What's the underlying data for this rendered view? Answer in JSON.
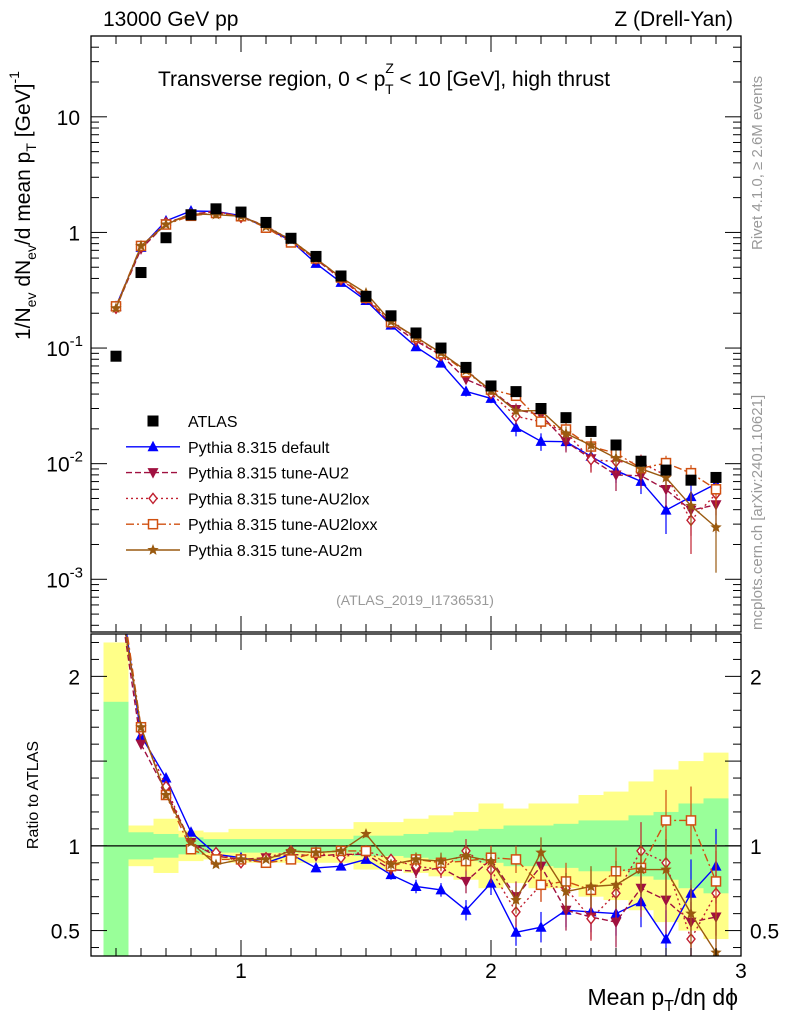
{
  "header": {
    "left": "13000 GeV pp",
    "right": "Z (Drell-Yan)"
  },
  "side": {
    "rivet": "Rivet 4.1.0, ≥ 2.6M events",
    "mcplots": "mcplots.cern.ch [arXiv:2401.10621]"
  },
  "chart_data": {
    "type": "line",
    "title_parts": {
      "pre": "Transverse region, 0 < p",
      "sup": "Z",
      "sub": "T",
      "post": " < 10 [GeV], high thrust"
    },
    "analysis_id": "(ATLAS_2019_I1736531)",
    "xlabel_parts": {
      "pre": "Mean p",
      "sub": "T",
      "post": "/dη dϕ"
    },
    "ylabel_text": "1/N_ev dN_ev/d mean p_T [GeV]^-1",
    "ratio_ylabel": "Ratio to ATLAS",
    "xlim": [
      0.4,
      3.0
    ],
    "xticks": [
      "1",
      "2",
      "3"
    ],
    "main_ylim_log": [
      0.00035,
      50
    ],
    "main_yticks": [
      {
        "base": "10",
        "exp": "-3",
        "value": 0.001
      },
      {
        "base": "10",
        "exp": "-2",
        "value": 0.01
      },
      {
        "base": "10",
        "exp": "-1",
        "value": 0.1
      },
      {
        "base": "1",
        "exp": "",
        "value": 1
      },
      {
        "base": "10",
        "exp": "",
        "value": 10
      }
    ],
    "ratio_ylim": [
      0.35,
      2.25
    ],
    "ratio_yticks": [
      "0.5",
      "1",
      "2"
    ],
    "x": [
      0.5,
      0.6,
      0.7,
      0.8,
      0.9,
      1.0,
      1.1,
      1.2,
      1.3,
      1.4,
      1.5,
      1.6,
      1.7,
      1.8,
      1.9,
      2.0,
      2.1,
      2.2,
      2.3,
      2.4,
      2.5,
      2.6,
      2.7,
      2.8,
      2.9
    ],
    "bin_edges": [
      0.45,
      0.55,
      0.65,
      0.75,
      0.85,
      0.95,
      1.05,
      1.15,
      1.25,
      1.35,
      1.45,
      1.55,
      1.65,
      1.75,
      1.85,
      1.95,
      2.05,
      2.15,
      2.25,
      2.35,
      2.45,
      2.55,
      2.65,
      2.75,
      2.85,
      2.95
    ],
    "data": {
      "name": "ATLAS",
      "color": "#000000",
      "values": [
        0.085,
        0.45,
        0.9,
        1.42,
        1.6,
        1.5,
        1.22,
        0.89,
        0.62,
        0.42,
        0.28,
        0.19,
        0.135,
        0.1,
        0.068,
        0.047,
        0.042,
        0.03,
        0.025,
        0.019,
        0.0145,
        0.0105,
        0.0088,
        0.0072,
        0.0076
      ],
      "band_inner": [
        0.85,
        0.08,
        0.07,
        0.05,
        0.04,
        0.04,
        0.04,
        0.04,
        0.04,
        0.04,
        0.06,
        0.06,
        0.07,
        0.08,
        0.09,
        0.1,
        0.12,
        0.12,
        0.13,
        0.15,
        0.15,
        0.18,
        0.2,
        0.25,
        0.28
      ],
      "band_outer": [
        1.2,
        0.12,
        0.16,
        0.09,
        0.08,
        0.1,
        0.1,
        0.1,
        0.1,
        0.1,
        0.14,
        0.14,
        0.16,
        0.18,
        0.2,
        0.25,
        0.22,
        0.25,
        0.25,
        0.3,
        0.32,
        0.38,
        0.45,
        0.5,
        0.55
      ]
    },
    "series": [
      {
        "name": "Pythia 8.315 default",
        "color": "#0000ff",
        "marker": "triangle-up",
        "dash": "",
        "ratio": [
          2.7,
          1.65,
          1.4,
          1.08,
          0.95,
          0.93,
          0.9,
          0.95,
          0.87,
          0.88,
          0.92,
          0.83,
          0.76,
          0.74,
          0.62,
          0.78,
          0.49,
          0.52,
          0.62,
          0.61,
          0.6,
          0.67,
          0.45,
          0.72,
          0.88
        ],
        "ratio_err": [
          0,
          0.02,
          0.02,
          0.01,
          0.01,
          0.01,
          0.01,
          0.01,
          0.02,
          0.02,
          0.02,
          0.03,
          0.04,
          0.04,
          0.06,
          0.07,
          0.08,
          0.09,
          0.1,
          0.12,
          0.13,
          0.15,
          0.17,
          0.2,
          0.22
        ]
      },
      {
        "name": "Pythia 8.315 tune-AU2",
        "color": "#a01040",
        "marker": "triangle-down",
        "dash": "6 3",
        "ratio": [
          2.6,
          1.6,
          1.32,
          1.02,
          0.94,
          0.92,
          0.93,
          0.95,
          0.94,
          0.95,
          0.95,
          0.86,
          0.85,
          0.87,
          0.79,
          0.92,
          0.7,
          0.88,
          0.62,
          0.58,
          0.55,
          0.75,
          0.68,
          0.55,
          0.58
        ],
        "ratio_err": [
          0,
          0.02,
          0.02,
          0.01,
          0.01,
          0.01,
          0.01,
          0.01,
          0.02,
          0.02,
          0.02,
          0.03,
          0.04,
          0.05,
          0.07,
          0.08,
          0.09,
          0.1,
          0.12,
          0.13,
          0.15,
          0.17,
          0.2,
          0.22,
          0.25
        ]
      },
      {
        "name": "Pythia 8.315 tune-AU2lox",
        "color": "#c02030",
        "marker": "diamond",
        "dash": "2 3",
        "ratio": [
          2.6,
          1.68,
          1.35,
          1.0,
          0.96,
          0.9,
          0.93,
          0.97,
          0.96,
          0.93,
          0.97,
          0.92,
          0.88,
          0.86,
          0.97,
          0.86,
          0.61,
          0.77,
          0.75,
          0.57,
          0.72,
          0.97,
          0.9,
          0.45,
          0.72
        ],
        "ratio_err": [
          0,
          0.02,
          0.02,
          0.01,
          0.01,
          0.01,
          0.01,
          0.01,
          0.02,
          0.02,
          0.02,
          0.03,
          0.04,
          0.05,
          0.07,
          0.08,
          0.09,
          0.1,
          0.12,
          0.13,
          0.15,
          0.17,
          0.2,
          0.22,
          0.25
        ]
      },
      {
        "name": "Pythia 8.315 tune-AU2loxx",
        "color": "#d05010",
        "marker": "square-open",
        "dash": "8 3 2 3",
        "ratio": [
          2.7,
          1.7,
          1.3,
          0.98,
          0.92,
          0.92,
          0.9,
          0.92,
          0.96,
          0.97,
          0.97,
          0.88,
          0.92,
          0.9,
          0.91,
          0.93,
          0.92,
          0.77,
          0.79,
          0.74,
          0.85,
          0.87,
          1.15,
          1.15,
          0.79
        ],
        "ratio_err": [
          0,
          0.02,
          0.02,
          0.01,
          0.01,
          0.01,
          0.01,
          0.01,
          0.02,
          0.02,
          0.02,
          0.03,
          0.04,
          0.05,
          0.06,
          0.07,
          0.08,
          0.1,
          0.11,
          0.12,
          0.14,
          0.16,
          0.18,
          0.2,
          0.22
        ]
      },
      {
        "name": "Pythia 8.315 tune-AU2m",
        "color": "#9a5a10",
        "marker": "star",
        "dash": "",
        "ratio": [
          2.6,
          1.7,
          1.3,
          1.02,
          0.89,
          0.92,
          0.92,
          0.97,
          0.96,
          0.97,
          1.07,
          0.89,
          0.92,
          0.91,
          0.94,
          0.91,
          0.68,
          0.96,
          0.73,
          0.76,
          0.77,
          0.86,
          0.86,
          0.6,
          0.37
        ],
        "ratio_err": [
          0,
          0.02,
          0.02,
          0.01,
          0.01,
          0.01,
          0.01,
          0.01,
          0.02,
          0.02,
          0.02,
          0.03,
          0.04,
          0.05,
          0.06,
          0.07,
          0.08,
          0.09,
          0.11,
          0.12,
          0.14,
          0.16,
          0.18,
          0.2,
          0.22
        ]
      }
    ],
    "legend_position": "left-middle",
    "colors": {
      "band_inner": "#99ff99",
      "band_outer": "#ffff88",
      "axis": "#000000"
    }
  }
}
